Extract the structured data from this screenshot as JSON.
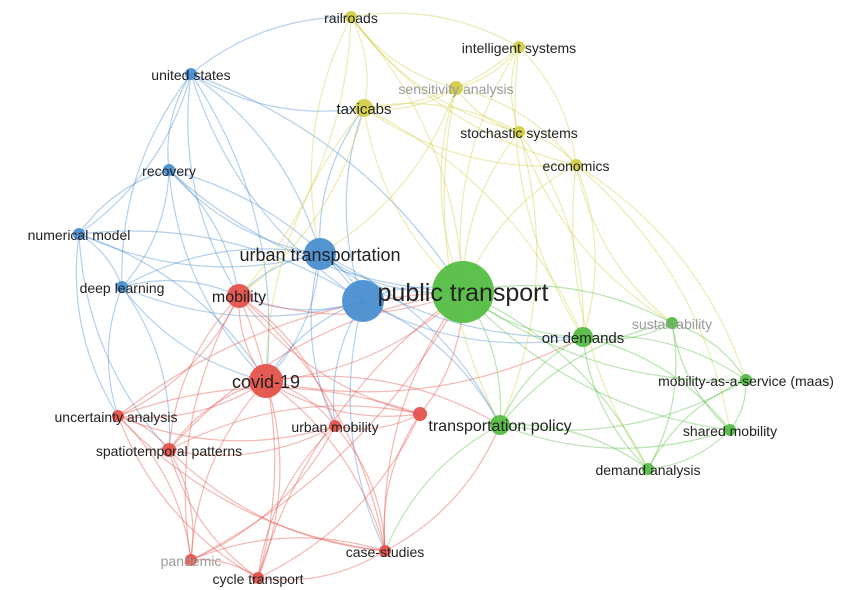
{
  "network": {
    "clusters": {
      "blue": "#4a8fd1",
      "yellow": "#d3cf47",
      "red": "#e5534b",
      "green": "#55be45"
    },
    "nodes": [
      {
        "id": "united-states",
        "label": "united states",
        "cluster": "blue"
      },
      {
        "id": "recovery",
        "label": "recovery",
        "cluster": "blue"
      },
      {
        "id": "numerical-model",
        "label": "numerical model",
        "cluster": "blue"
      },
      {
        "id": "deep-learning",
        "label": "deep learning",
        "cluster": "blue"
      },
      {
        "id": "urban-transportation",
        "label": "urban transportation",
        "cluster": "blue"
      },
      {
        "id": "public-transport-hub",
        "label": "",
        "cluster": "blue"
      },
      {
        "id": "railroads",
        "label": "railroads",
        "cluster": "yellow"
      },
      {
        "id": "intelligent-systems",
        "label": "intelligent systems",
        "cluster": "yellow"
      },
      {
        "id": "sensitivity-analysis",
        "label": "sensitivity analysis",
        "cluster": "yellow",
        "faded": true
      },
      {
        "id": "taxicabs",
        "label": "taxicabs",
        "cluster": "yellow"
      },
      {
        "id": "stochastic-systems",
        "label": "stochastic systems",
        "cluster": "yellow"
      },
      {
        "id": "economics",
        "label": "economics",
        "cluster": "yellow"
      },
      {
        "id": "mobility",
        "label": "mobility",
        "cluster": "red"
      },
      {
        "id": "covid-19",
        "label": "covid-19",
        "cluster": "red"
      },
      {
        "id": "uncertainty-analysis",
        "label": "uncertainty analysis",
        "cluster": "red"
      },
      {
        "id": "spatiotemporal-patterns",
        "label": "spatiotemporal patterns",
        "cluster": "red"
      },
      {
        "id": "urban-mobility",
        "label": "urban mobility",
        "cluster": "red"
      },
      {
        "id": "transport-red",
        "label": "",
        "cluster": "red"
      },
      {
        "id": "case-studies",
        "label": "case-studies",
        "cluster": "red"
      },
      {
        "id": "pandemic",
        "label": "pandemic",
        "cluster": "red",
        "faded": true
      },
      {
        "id": "cycle-transport",
        "label": "cycle transport",
        "cluster": "red"
      },
      {
        "id": "public-transport",
        "label": "public transport",
        "cluster": "green"
      },
      {
        "id": "on-demands",
        "label": "on demands",
        "cluster": "green"
      },
      {
        "id": "sustainability",
        "label": "sustainability",
        "cluster": "green",
        "faded": true
      },
      {
        "id": "mobility-as-a-service",
        "label": "mobility-as-a-service (maas)",
        "cluster": "green"
      },
      {
        "id": "transportation-policy",
        "label": "transportation policy",
        "cluster": "green"
      },
      {
        "id": "shared-mobility",
        "label": "shared mobility",
        "cluster": "green"
      },
      {
        "id": "demand-analysis",
        "label": "demand analysis",
        "cluster": "green"
      }
    ]
  }
}
